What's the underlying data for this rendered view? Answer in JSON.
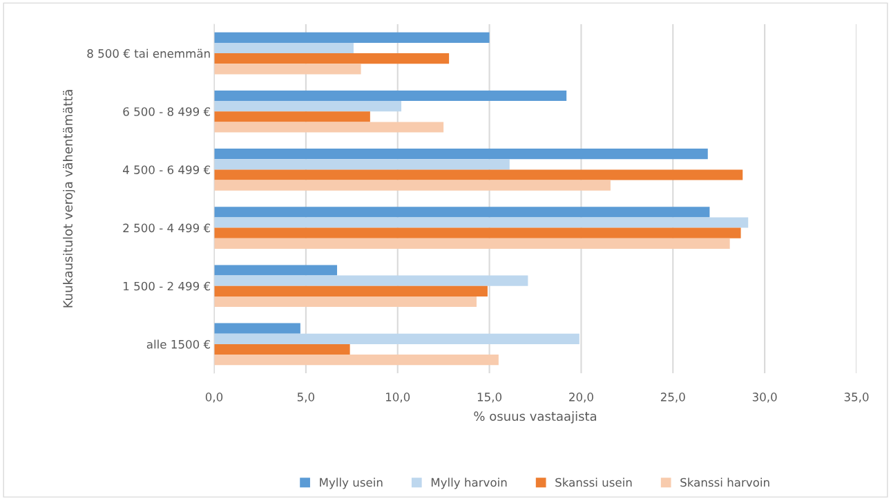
{
  "chart_data": {
    "type": "bar",
    "orientation": "horizontal",
    "xlabel": "% osuus vastaajista",
    "ylabel": "Kuukausitulot veroja vähentämättä",
    "categories": [
      "8 500 € tai enemmän",
      "6 500 - 8 499 €",
      "4 500 - 6 499 €",
      "2 500 - 4 499 €",
      "1 500 - 2 499 €",
      "alle 1500 €"
    ],
    "series": [
      {
        "name": "Mylly usein",
        "color": "#5b9bd5",
        "values": [
          15.0,
          19.2,
          26.9,
          27.0,
          6.7,
          4.7
        ]
      },
      {
        "name": "Mylly harvoin",
        "color": "#bdd7ee",
        "values": [
          7.6,
          10.2,
          16.1,
          29.1,
          17.1,
          19.9
        ]
      },
      {
        "name": "Skanssi usein",
        "color": "#ed7d31",
        "values": [
          12.8,
          8.5,
          28.8,
          28.7,
          14.9,
          7.4
        ]
      },
      {
        "name": "Skanssi harvoin",
        "color": "#f8cbad",
        "values": [
          8.0,
          12.5,
          21.6,
          28.1,
          14.3,
          15.5
        ]
      }
    ],
    "xlim": [
      0,
      35
    ],
    "xticks": [
      {
        "value": 0,
        "label": "0,0"
      },
      {
        "value": 5,
        "label": "5,0"
      },
      {
        "value": 10,
        "label": "10,0"
      },
      {
        "value": 15,
        "label": "15,0"
      },
      {
        "value": 20,
        "label": "20,0"
      },
      {
        "value": 25,
        "label": "25,0"
      },
      {
        "value": 30,
        "label": "30,0"
      },
      {
        "value": 35,
        "label": "35,0"
      }
    ],
    "grid": "x",
    "legend": "bottom"
  }
}
